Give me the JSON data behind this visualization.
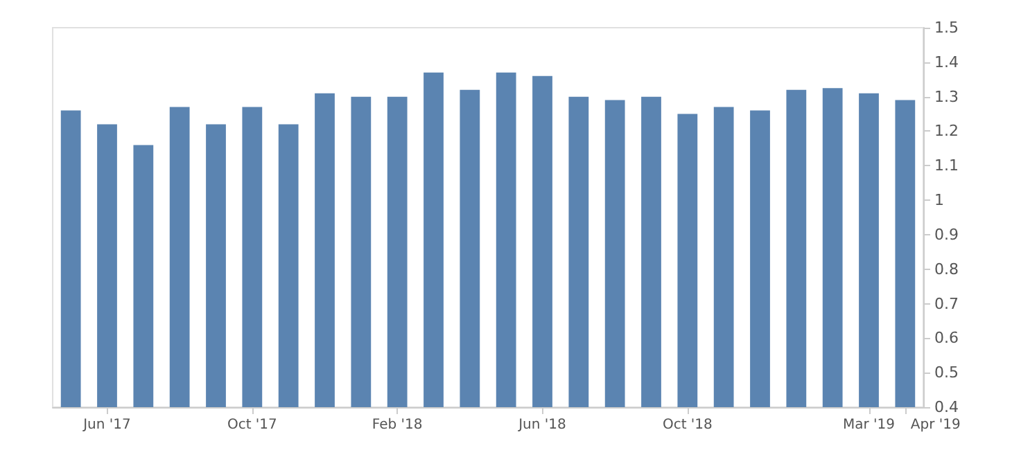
{
  "chart_data": {
    "type": "bar",
    "categories": [
      null,
      "Jun '17",
      null,
      null,
      null,
      "Oct '17",
      null,
      null,
      null,
      "Feb '18",
      null,
      null,
      null,
      "Jun '18",
      null,
      null,
      null,
      "Oct '18",
      null,
      null,
      null,
      null,
      "Mar '19",
      "Apr '19"
    ],
    "values": [
      1.26,
      1.22,
      1.16,
      1.27,
      1.22,
      1.27,
      1.22,
      1.31,
      1.3,
      1.3,
      1.37,
      1.32,
      1.37,
      1.36,
      1.3,
      1.29,
      1.3,
      1.25,
      1.27,
      1.26,
      1.32,
      1.325,
      1.31,
      1.29
    ],
    "color": "#5b84b1",
    "ylim": [
      0.4,
      1.5
    ],
    "yticks": [
      0.4,
      0.5,
      0.6,
      0.7,
      0.8,
      0.9,
      1,
      1.1,
      1.2,
      1.3,
      1.4,
      1.5
    ],
    "grid": false
  }
}
